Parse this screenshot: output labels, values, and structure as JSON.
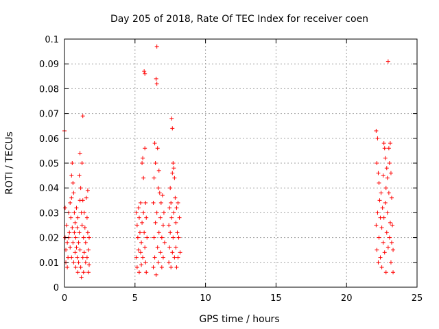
{
  "chart_data": {
    "type": "scatter",
    "title": "Day 205 of 2018, Rate Of TEC Index for receiver coen",
    "xlabel": "GPS time / hours",
    "ylabel": "ROTI / TECUs",
    "xlim": [
      0,
      25
    ],
    "ylim": [
      0,
      0.1
    ],
    "x_ticks": [
      0,
      5,
      10,
      15,
      20,
      25
    ],
    "x_tick_labels": [
      "0",
      "5",
      "10",
      "15",
      "20",
      "25"
    ],
    "y_ticks": [
      0,
      0.01,
      0.02,
      0.03,
      0.04,
      0.05,
      0.06,
      0.07,
      0.08,
      0.09,
      0.1
    ],
    "y_tick_labels": [
      "0",
      "0.01",
      "0.02",
      "0.03",
      "0.04",
      "0.05",
      "0.06",
      "0.07",
      "0.08",
      "0.09",
      "0.1"
    ],
    "grid": true,
    "marker": "+",
    "color": "#ff0000",
    "points": [
      [
        0.0,
        0.063
      ],
      [
        0.05,
        0.032
      ],
      [
        0.05,
        0.02
      ],
      [
        0.1,
        0.015
      ],
      [
        0.1,
        0.01
      ],
      [
        0.15,
        0.025
      ],
      [
        0.2,
        0.018
      ],
      [
        0.2,
        0.008
      ],
      [
        0.25,
        0.012
      ],
      [
        0.3,
        0.02
      ],
      [
        0.3,
        0.03
      ],
      [
        0.35,
        0.022
      ],
      [
        0.4,
        0.034
      ],
      [
        0.4,
        0.016
      ],
      [
        0.45,
        0.028
      ],
      [
        0.5,
        0.045
      ],
      [
        0.5,
        0.036
      ],
      [
        0.5,
        0.012
      ],
      [
        0.55,
        0.05
      ],
      [
        0.55,
        0.024
      ],
      [
        0.6,
        0.042
      ],
      [
        0.6,
        0.018
      ],
      [
        0.65,
        0.038
      ],
      [
        0.65,
        0.01
      ],
      [
        0.7,
        0.03
      ],
      [
        0.7,
        0.022
      ],
      [
        0.75,
        0.026
      ],
      [
        0.75,
        0.014
      ],
      [
        0.8,
        0.02
      ],
      [
        0.8,
        0.008
      ],
      [
        0.85,
        0.032
      ],
      [
        0.85,
        0.016
      ],
      [
        0.9,
        0.024
      ],
      [
        0.9,
        0.012
      ],
      [
        0.95,
        0.028
      ],
      [
        0.95,
        0.006
      ],
      [
        1.0,
        0.018
      ],
      [
        1.0,
        0.01
      ],
      [
        1.05,
        0.045
      ],
      [
        1.05,
        0.022
      ],
      [
        1.1,
        0.054
      ],
      [
        1.1,
        0.035
      ],
      [
        1.1,
        0.015
      ],
      [
        1.15,
        0.04
      ],
      [
        1.15,
        0.008
      ],
      [
        1.2,
        0.03
      ],
      [
        1.2,
        0.004
      ],
      [
        1.25,
        0.05
      ],
      [
        1.25,
        0.025
      ],
      [
        1.3,
        0.069
      ],
      [
        1.3,
        0.035
      ],
      [
        1.3,
        0.012
      ],
      [
        1.35,
        0.02
      ],
      [
        1.35,
        0.006
      ],
      [
        1.4,
        0.03
      ],
      [
        1.4,
        0.014
      ],
      [
        1.45,
        0.024
      ],
      [
        1.5,
        0.018
      ],
      [
        1.5,
        0.01
      ],
      [
        1.55,
        0.036
      ],
      [
        1.6,
        0.028
      ],
      [
        1.6,
        0.012
      ],
      [
        1.65,
        0.039
      ],
      [
        1.65,
        0.022
      ],
      [
        1.7,
        0.015
      ],
      [
        1.7,
        0.006
      ],
      [
        1.75,
        0.02
      ],
      [
        1.75,
        0.009
      ],
      [
        5.1,
        0.03
      ],
      [
        5.1,
        0.012
      ],
      [
        5.15,
        0.025
      ],
      [
        5.15,
        0.008
      ],
      [
        5.2,
        0.02
      ],
      [
        5.25,
        0.032
      ],
      [
        5.25,
        0.015
      ],
      [
        5.3,
        0.028
      ],
      [
        5.3,
        0.006
      ],
      [
        5.35,
        0.022
      ],
      [
        5.4,
        0.034
      ],
      [
        5.4,
        0.014
      ],
      [
        5.45,
        0.018
      ],
      [
        5.45,
        0.009
      ],
      [
        5.5,
        0.05
      ],
      [
        5.5,
        0.026
      ],
      [
        5.55,
        0.052
      ],
      [
        5.55,
        0.012
      ],
      [
        5.6,
        0.044
      ],
      [
        5.6,
        0.03
      ],
      [
        5.65,
        0.087
      ],
      [
        5.65,
        0.022
      ],
      [
        5.7,
        0.086
      ],
      [
        5.7,
        0.056
      ],
      [
        5.7,
        0.016
      ],
      [
        5.75,
        0.034
      ],
      [
        5.75,
        0.01
      ],
      [
        5.8,
        0.028
      ],
      [
        5.8,
        0.006
      ],
      [
        5.85,
        0.02
      ],
      [
        6.3,
        0.034
      ],
      [
        6.3,
        0.008
      ],
      [
        6.35,
        0.044
      ],
      [
        6.35,
        0.02
      ],
      [
        6.4,
        0.058
      ],
      [
        6.4,
        0.012
      ],
      [
        6.45,
        0.05
      ],
      [
        6.45,
        0.026
      ],
      [
        6.5,
        0.084
      ],
      [
        6.5,
        0.005
      ],
      [
        6.55,
        0.097
      ],
      [
        6.55,
        0.082
      ],
      [
        6.55,
        0.03
      ],
      [
        6.6,
        0.056
      ],
      [
        6.6,
        0.016
      ],
      [
        6.65,
        0.04
      ],
      [
        6.65,
        0.01
      ],
      [
        6.7,
        0.047
      ],
      [
        6.7,
        0.022
      ],
      [
        6.75,
        0.038
      ],
      [
        6.8,
        0.028
      ],
      [
        6.8,
        0.014
      ],
      [
        6.85,
        0.034
      ],
      [
        6.9,
        0.02
      ],
      [
        6.9,
        0.008
      ],
      [
        6.95,
        0.037
      ],
      [
        7.0,
        0.025
      ],
      [
        7.0,
        0.012
      ],
      [
        7.05,
        0.03
      ],
      [
        7.1,
        0.018
      ],
      [
        7.4,
        0.025
      ],
      [
        7.4,
        0.01
      ],
      [
        7.45,
        0.032
      ],
      [
        7.45,
        0.016
      ],
      [
        7.5,
        0.04
      ],
      [
        7.5,
        0.022
      ],
      [
        7.55,
        0.034
      ],
      [
        7.55,
        0.008
      ],
      [
        7.6,
        0.068
      ],
      [
        7.6,
        0.028
      ],
      [
        7.65,
        0.064
      ],
      [
        7.65,
        0.046
      ],
      [
        7.65,
        0.014
      ],
      [
        7.7,
        0.05
      ],
      [
        7.7,
        0.02
      ],
      [
        7.75,
        0.048
      ],
      [
        7.75,
        0.03
      ],
      [
        7.8,
        0.044
      ],
      [
        7.8,
        0.012
      ],
      [
        7.85,
        0.036
      ],
      [
        7.9,
        0.026
      ],
      [
        7.9,
        0.016
      ],
      [
        7.95,
        0.032
      ],
      [
        7.95,
        0.008
      ],
      [
        8.0,
        0.022
      ],
      [
        8.05,
        0.034
      ],
      [
        8.05,
        0.012
      ],
      [
        8.1,
        0.02
      ],
      [
        8.15,
        0.028
      ],
      [
        8.2,
        0.014
      ],
      [
        22.1,
        0.063
      ],
      [
        22.1,
        0.025
      ],
      [
        22.15,
        0.05
      ],
      [
        22.15,
        0.015
      ],
      [
        22.2,
        0.06
      ],
      [
        22.2,
        0.03
      ],
      [
        22.25,
        0.046
      ],
      [
        22.25,
        0.01
      ],
      [
        22.3,
        0.042
      ],
      [
        22.3,
        0.02
      ],
      [
        22.35,
        0.035
      ],
      [
        22.4,
        0.028
      ],
      [
        22.4,
        0.012
      ],
      [
        22.45,
        0.038
      ],
      [
        22.5,
        0.024
      ],
      [
        22.5,
        0.008
      ],
      [
        22.55,
        0.032
      ],
      [
        22.6,
        0.045
      ],
      [
        22.6,
        0.018
      ],
      [
        22.65,
        0.058
      ],
      [
        22.65,
        0.028
      ],
      [
        22.7,
        0.056
      ],
      [
        22.7,
        0.014
      ],
      [
        22.75,
        0.052
      ],
      [
        22.75,
        0.034
      ],
      [
        22.8,
        0.04
      ],
      [
        22.8,
        0.006
      ],
      [
        22.85,
        0.048
      ],
      [
        22.85,
        0.022
      ],
      [
        22.9,
        0.044
      ],
      [
        22.9,
        0.03
      ],
      [
        22.95,
        0.091
      ],
      [
        22.95,
        0.016
      ],
      [
        23.0,
        0.056
      ],
      [
        23.0,
        0.038
      ],
      [
        23.05,
        0.05
      ],
      [
        23.05,
        0.02
      ],
      [
        23.1,
        0.058
      ],
      [
        23.1,
        0.026
      ],
      [
        23.15,
        0.046
      ],
      [
        23.15,
        0.01
      ],
      [
        23.2,
        0.036
      ],
      [
        23.2,
        0.018
      ],
      [
        23.25,
        0.025
      ],
      [
        23.3,
        0.015
      ],
      [
        23.3,
        0.006
      ]
    ]
  }
}
